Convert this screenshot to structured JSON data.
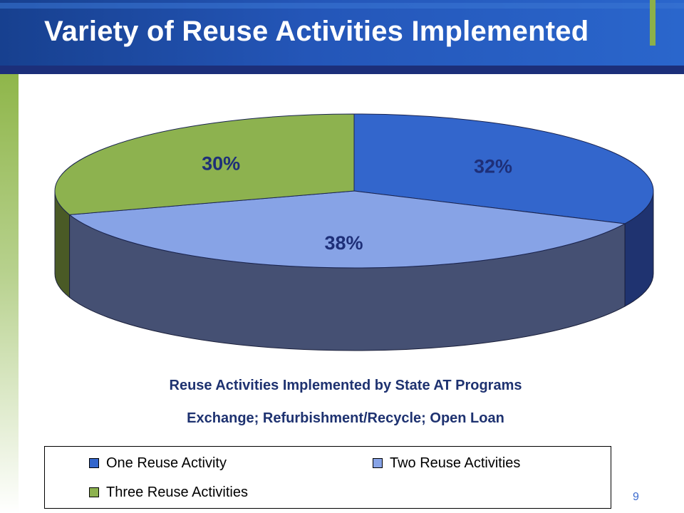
{
  "slide": {
    "title": "Variety of Reuse Activities Implemented",
    "page_number": "9"
  },
  "chart_data": {
    "type": "pie",
    "style": "3d",
    "categories": [
      "One Reuse Activity",
      "Two Reuse Activities",
      "Three Reuse Activities"
    ],
    "values": [
      32,
      38,
      30
    ],
    "value_labels": [
      "32%",
      "38%",
      "30%"
    ],
    "colors": [
      "#3366cc",
      "#87a3e6",
      "#8db24f"
    ],
    "title": "",
    "legend_position": "bottom"
  },
  "captions": {
    "line1": "Reuse Activities Implemented by State AT Programs",
    "line2": "Exchange; Refurbishment/Recycle; Open Loan"
  },
  "legend": {
    "items": [
      {
        "label": "One Reuse Activity",
        "color": "#3366cc"
      },
      {
        "label": "Two Reuse Activities",
        "color": "#87a3e6"
      },
      {
        "label": "Three Reuse Activities",
        "color": "#8db24f"
      }
    ]
  }
}
